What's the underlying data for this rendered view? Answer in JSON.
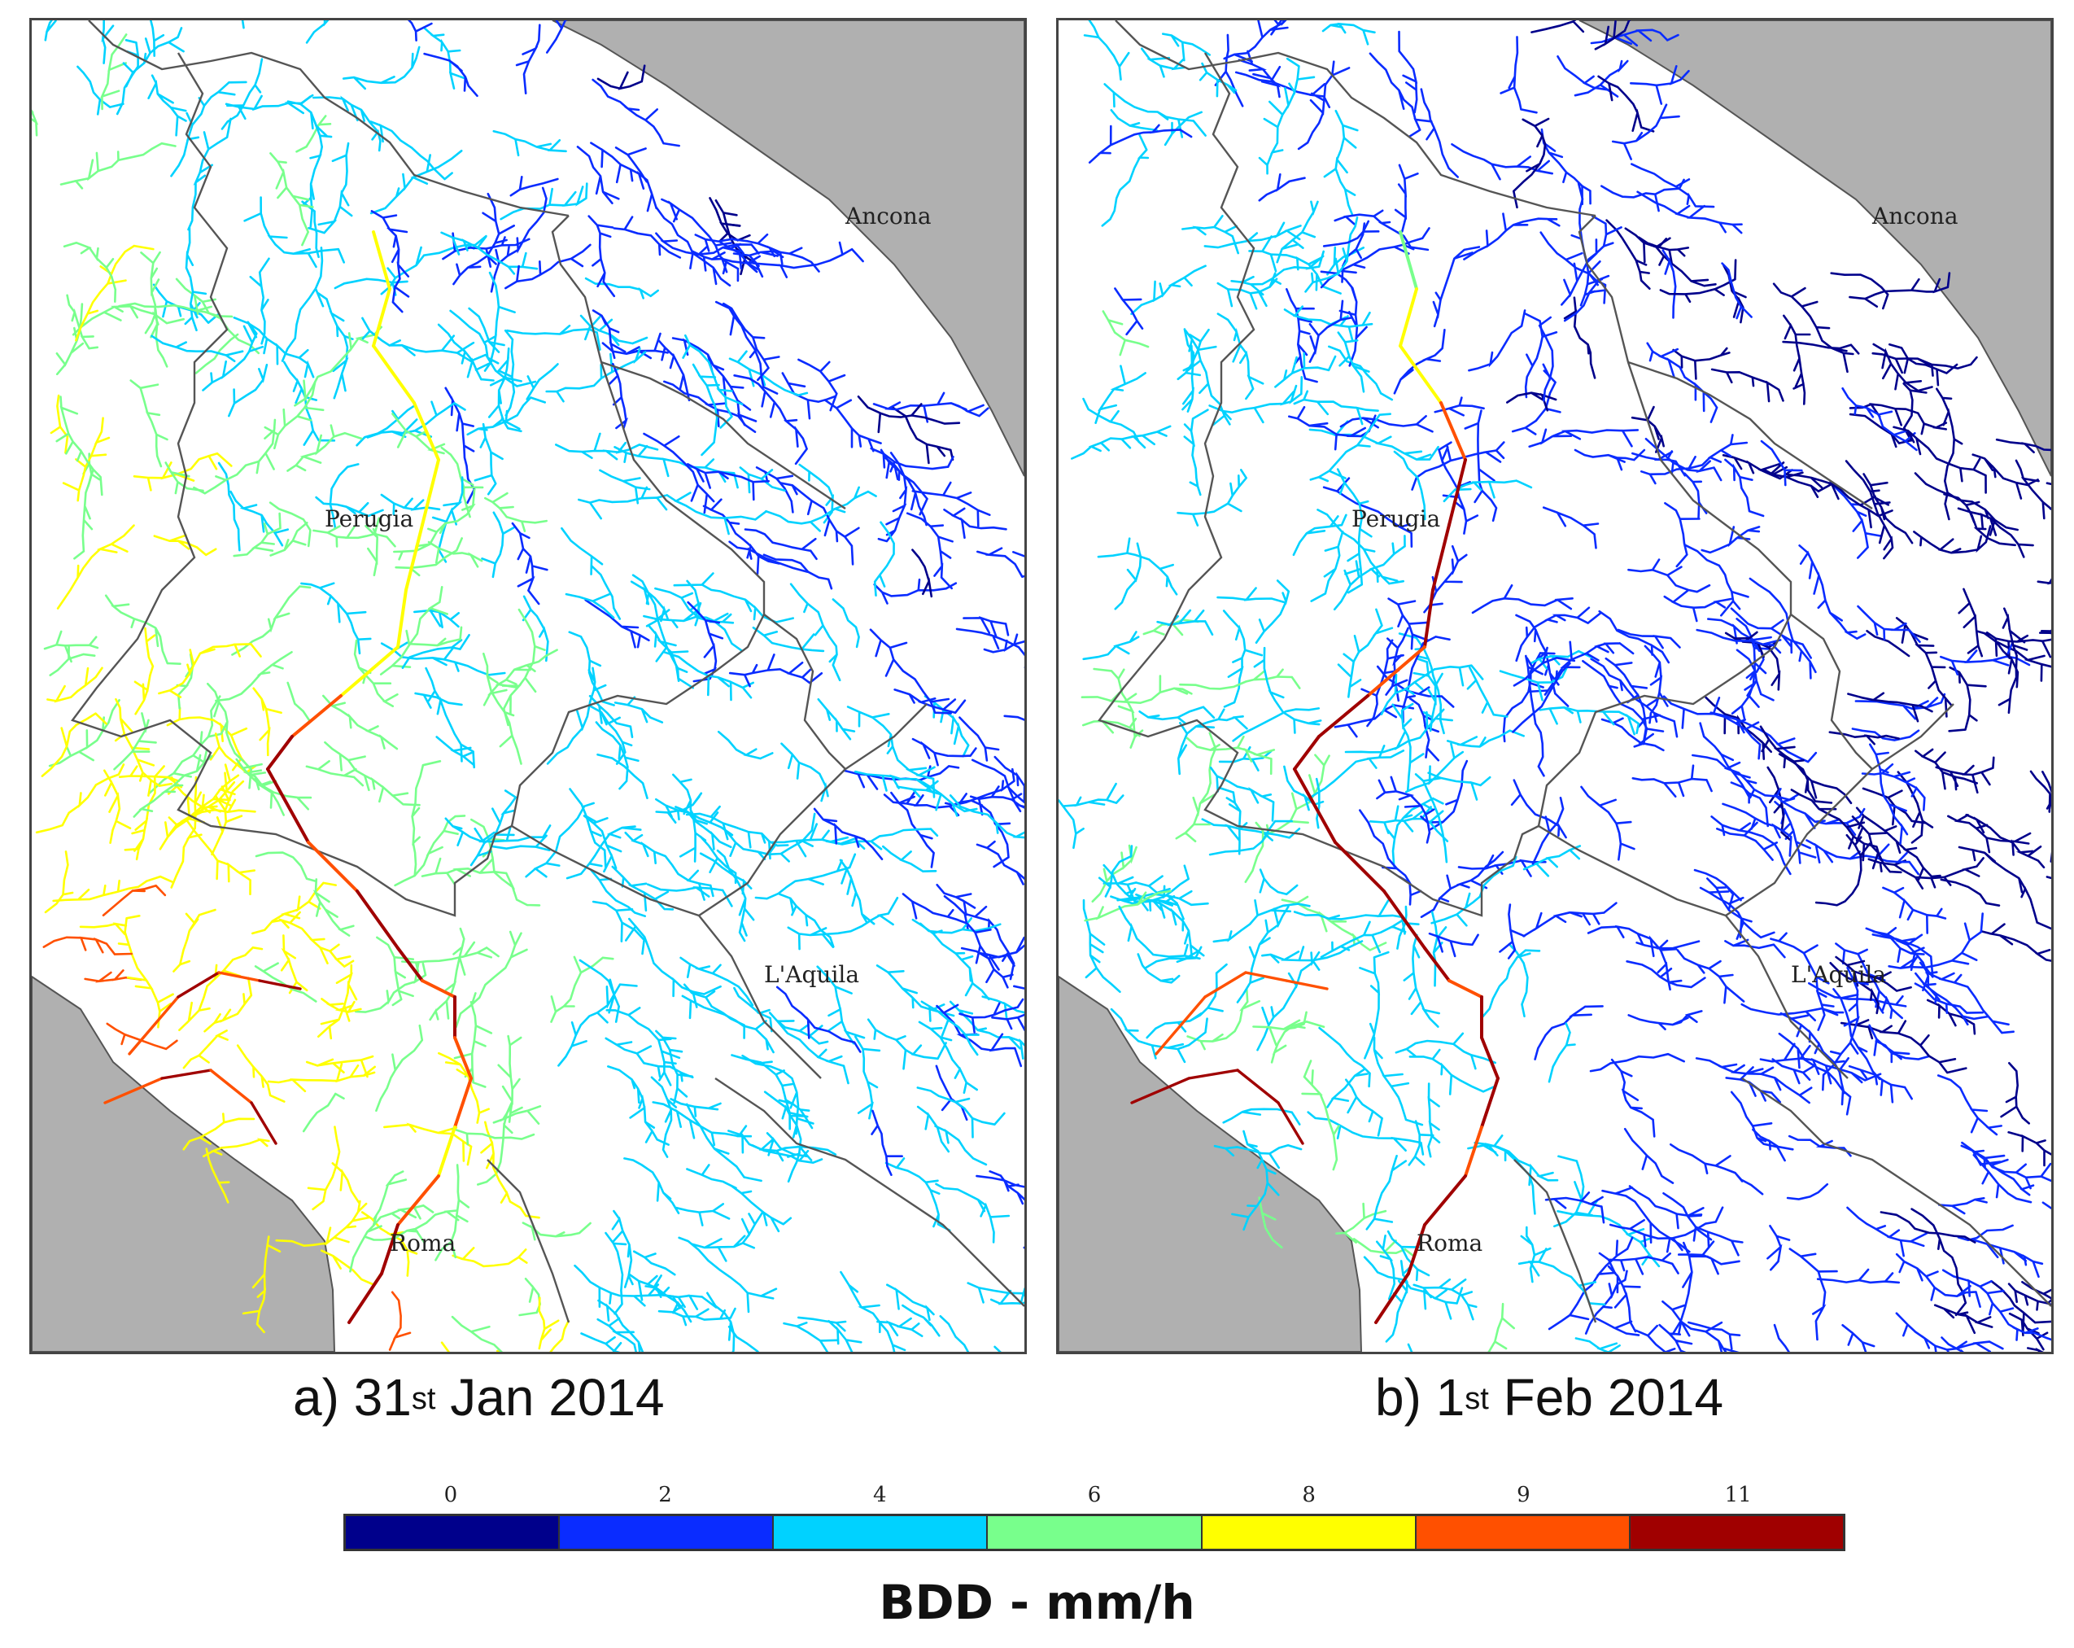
{
  "panels": [
    {
      "id": "a",
      "caption_prefix": "a) 31",
      "caption_sup": "st",
      "caption_suffix": " Jan 2014",
      "cities": [
        "Ancona",
        "Perugia",
        "L'Aquila",
        "Roma"
      ]
    },
    {
      "id": "b",
      "caption_prefix": "b) 1",
      "caption_sup": "st",
      "caption_suffix": " Feb 2014",
      "cities": [
        "Ancona",
        "Perugia",
        "L'Aquila",
        "Roma"
      ]
    }
  ],
  "colorbar": {
    "title": "BDD - mm/h",
    "ticks": [
      "0",
      "2",
      "4",
      "6",
      "8",
      "9",
      "11"
    ],
    "colors": [
      "#00008b",
      "#0a2cff",
      "#00d2ff",
      "#78ff8c",
      "#ffff00",
      "#ff5000",
      "#a00000"
    ]
  },
  "colors": {
    "sea": "#b0b0b0",
    "boundary": "#555555",
    "frame": "#444444"
  }
}
